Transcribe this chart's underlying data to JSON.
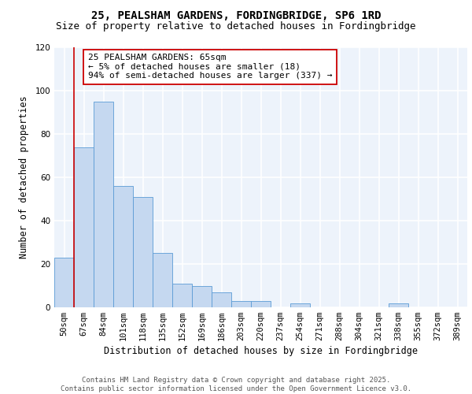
{
  "title1": "25, PEALSHAM GARDENS, FORDINGBRIDGE, SP6 1RD",
  "title2": "Size of property relative to detached houses in Fordingbridge",
  "xlabel": "Distribution of detached houses by size in Fordingbridge",
  "ylabel": "Number of detached properties",
  "categories": [
    "50sqm",
    "67sqm",
    "84sqm",
    "101sqm",
    "118sqm",
    "135sqm",
    "152sqm",
    "169sqm",
    "186sqm",
    "203sqm",
    "220sqm",
    "237sqm",
    "254sqm",
    "271sqm",
    "288sqm",
    "304sqm",
    "321sqm",
    "338sqm",
    "355sqm",
    "372sqm",
    "389sqm"
  ],
  "values": [
    23,
    74,
    95,
    56,
    51,
    25,
    11,
    10,
    7,
    3,
    3,
    0,
    2,
    0,
    0,
    0,
    0,
    2,
    0,
    0,
    0
  ],
  "bar_color": "#c5d8f0",
  "bar_edge_color": "#5b9bd5",
  "property_line_color": "#cc0000",
  "annotation_text": "25 PEALSHAM GARDENS: 65sqm\n← 5% of detached houses are smaller (18)\n94% of semi-detached houses are larger (337) →",
  "annotation_box_color": "#ffffff",
  "annotation_box_edge": "#cc0000",
  "ylim": [
    0,
    120
  ],
  "yticks": [
    0,
    20,
    40,
    60,
    80,
    100,
    120
  ],
  "bg_color": "#edf3fb",
  "grid_color": "#ffffff",
  "footer": "Contains HM Land Registry data © Crown copyright and database right 2025.\nContains public sector information licensed under the Open Government Licence v3.0.",
  "title1_fontsize": 10,
  "title2_fontsize": 9,
  "xlabel_fontsize": 8.5,
  "ylabel_fontsize": 8.5,
  "tick_fontsize": 7.5,
  "annotation_fontsize": 8,
  "footer_fontsize": 6.5
}
